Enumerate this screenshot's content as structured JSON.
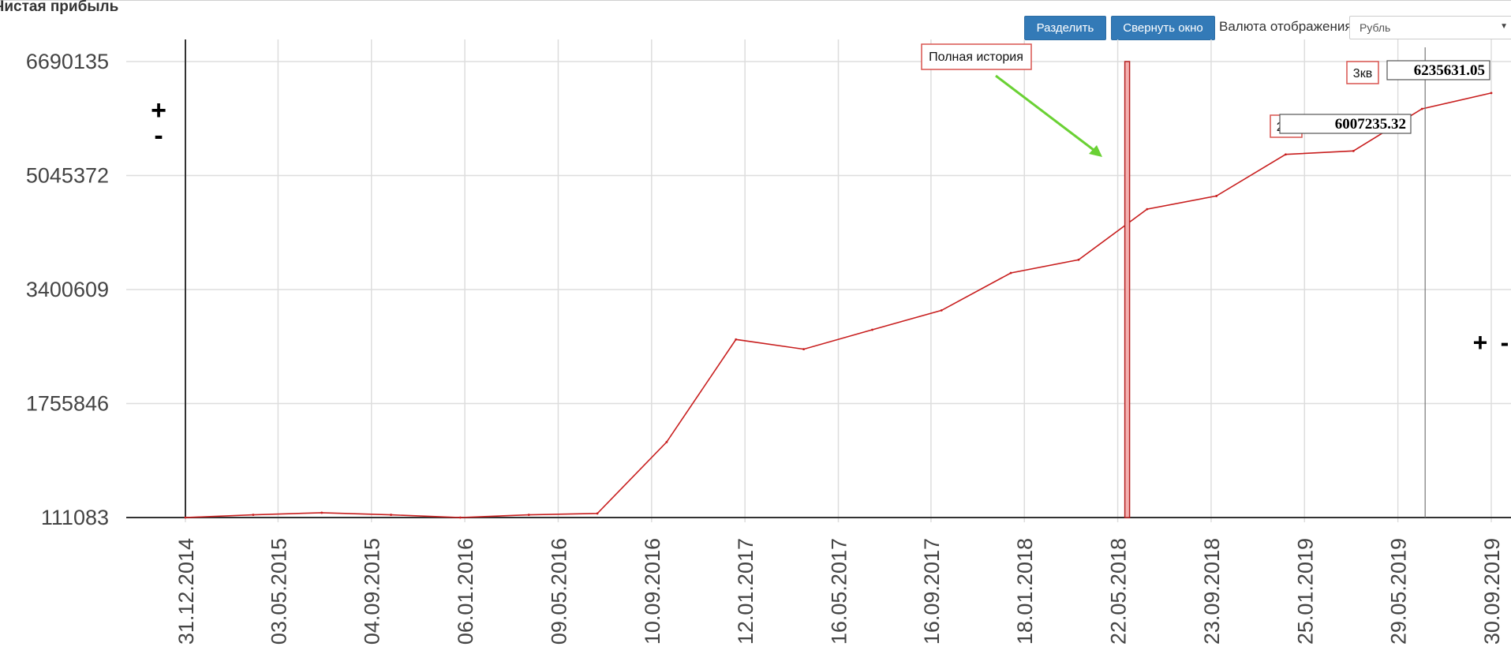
{
  "page_title": "Чистая прибыль",
  "toolbar": {
    "split_label": "Разделить",
    "collapse_label": "Свернуть окно",
    "currency_label": "Валюта отображения",
    "currency_value": "Рубль"
  },
  "zoom_controls": {
    "y_plus": "+",
    "y_minus": "-",
    "x_plus": "+",
    "x_minus": "-"
  },
  "colors": {
    "line": "#c81e1e",
    "button": "#337ab7",
    "arrow": "#6ad134",
    "marker": "#e36a6a"
  },
  "chart_data": {
    "type": "line",
    "title": "Чистая прибыль",
    "ylim": [
      111083,
      6690135
    ],
    "yticks": [
      111083,
      1755846,
      3400609,
      5045372,
      6690135
    ],
    "ytick_labels": [
      "111083",
      "1755846",
      "3400609",
      "5045372",
      "6690135"
    ],
    "xlim": [
      "2014-12-31",
      "2019-09-30"
    ],
    "xtick_labels": [
      "31.12.2014",
      "03.05.2015",
      "04.09.2015",
      "06.01.2016",
      "09.05.2016",
      "10.09.2016",
      "12.01.2017",
      "16.05.2017",
      "16.09.2017",
      "18.01.2018",
      "22.05.2018",
      "23.09.2018",
      "25.01.2019",
      "29.05.2019",
      "30.09.2019"
    ],
    "grid": true,
    "series": [
      {
        "x": [
          "2014-12-31",
          "2015-03-31",
          "2015-06-30",
          "2015-09-30",
          "2015-12-31",
          "2016-03-31",
          "2016-06-30",
          "2016-09-30",
          "2016-12-31",
          "2017-03-31",
          "2017-06-30",
          "2017-09-30",
          "2017-12-31",
          "2018-03-31",
          "2018-06-30",
          "2018-09-30",
          "2018-12-31",
          "2019-03-31",
          "2019-06-30",
          "2019-09-30"
        ],
        "values": [
          111083,
          150000,
          180000,
          150000,
          111083,
          150000,
          170000,
          1200000,
          2680000,
          2540000,
          2820000,
          3100000,
          3640000,
          3830000,
          4560000,
          4750000,
          5350000,
          5400000,
          6007235.32,
          6235631.05
        ]
      }
    ],
    "annotations": [
      {
        "text": "Полная история",
        "x": "2018-05-22"
      },
      {
        "label": "2кв",
        "value": "6007235.32",
        "x": "2019-06-30"
      },
      {
        "label": "3кв",
        "value": "6235631.05",
        "x": "2019-09-30"
      }
    ]
  }
}
